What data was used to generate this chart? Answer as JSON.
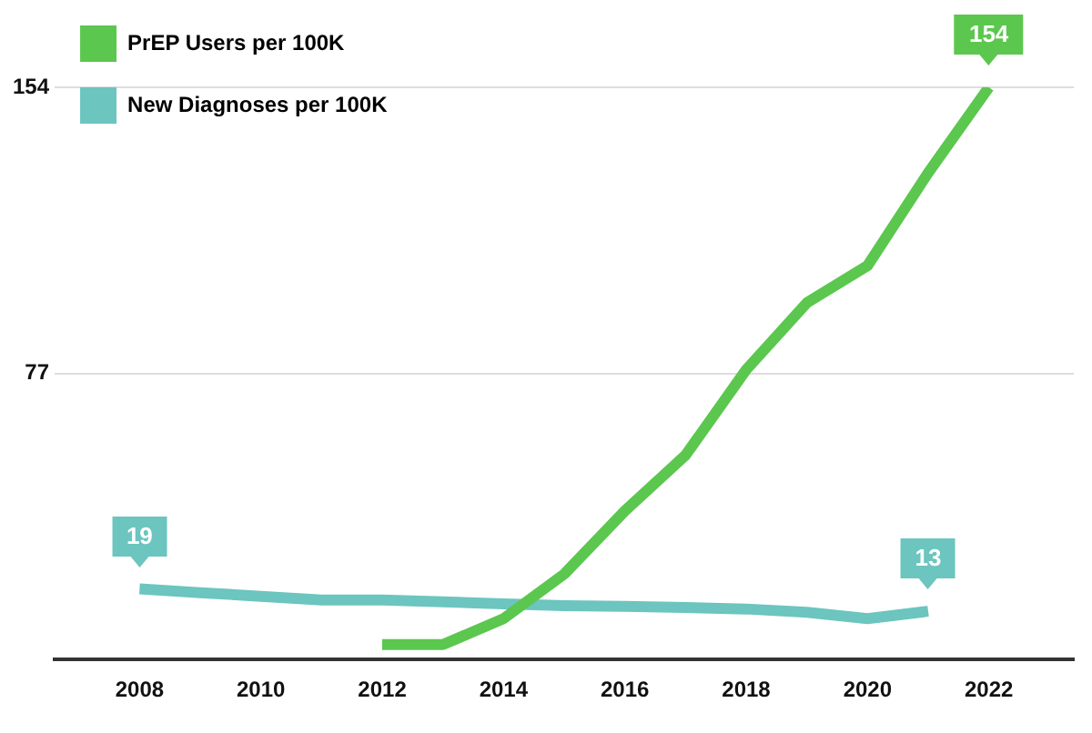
{
  "chart_data": {
    "type": "line",
    "xlim": [
      2006.6,
      2023.4
    ],
    "xticks": [
      2008,
      2010,
      2012,
      2014,
      2016,
      2018,
      2020,
      2022
    ],
    "ylim": [
      0,
      154
    ],
    "yticks": [
      {
        "value": 0,
        "label": null
      },
      77,
      154
    ],
    "grid": "y",
    "legend": "top left",
    "marker": "none",
    "line_style": "solid",
    "series": [
      {
        "name": "PrEP Users per 100K",
        "color": "#5bc74e",
        "x": [
          2012,
          2013,
          2014,
          2015,
          2016,
          2017,
          2018,
          2019,
          2020,
          2021,
          2022
        ],
        "values": [
          4,
          4,
          11,
          23,
          40,
          55,
          78,
          96,
          106,
          131,
          154
        ],
        "value_labels": [
          null,
          null,
          null,
          null,
          null,
          null,
          null,
          null,
          null,
          null,
          "154"
        ]
      },
      {
        "name": "New Diagnoses per 100K",
        "color": "#6cc5bf",
        "x": [
          2008,
          2009,
          2010,
          2011,
          2012,
          2013,
          2014,
          2015,
          2016,
          2017,
          2018,
          2019,
          2020,
          2021
        ],
        "values": [
          19,
          18,
          17,
          16,
          16,
          15.5,
          15,
          14.5,
          14.3,
          14,
          13.6,
          12.7,
          11,
          13
        ],
        "value_labels": [
          "19",
          null,
          null,
          null,
          null,
          null,
          null,
          null,
          null,
          null,
          null,
          null,
          null,
          "13"
        ]
      }
    ]
  }
}
